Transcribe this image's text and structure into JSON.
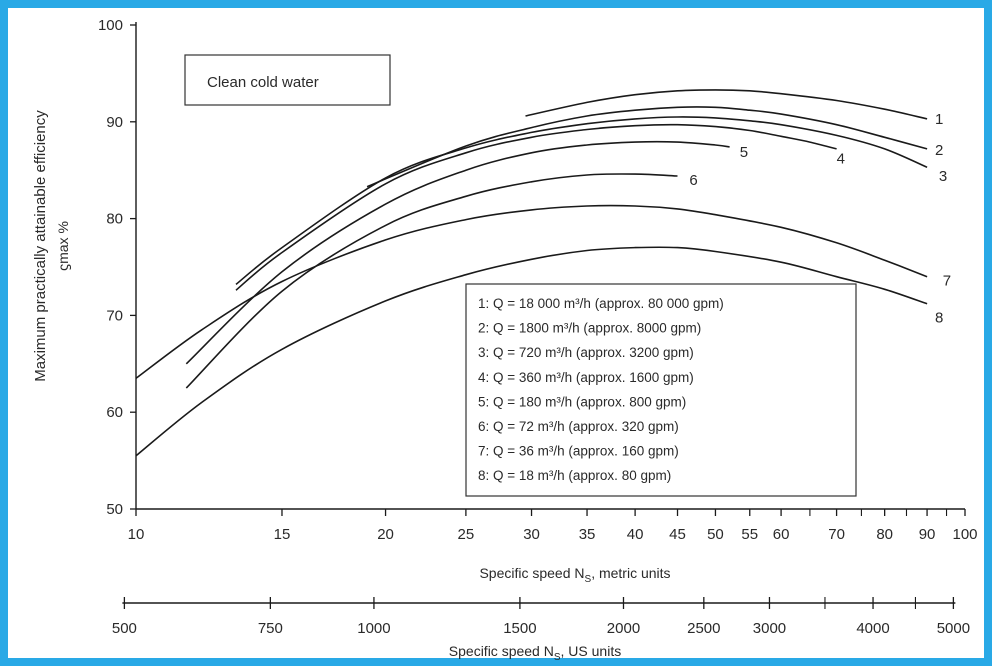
{
  "chart_data": {
    "type": "line",
    "title": "",
    "xlabel": "Specific speed N",
    "xlabel_sub": "S",
    "xlabel_suffix": ", metric units",
    "x2label": "Specific speed N",
    "x2label_sub": "S",
    "x2label_suffix": ", US units",
    "ylabel": "Maximum practically attainable efficiency",
    "ylabel2": "ϛmax %",
    "x_scale": "log",
    "xlim": [
      10,
      100
    ],
    "ylim": [
      50,
      100
    ],
    "x_ticks": [
      10,
      15,
      20,
      25,
      30,
      35,
      40,
      45,
      50,
      55,
      60,
      70,
      80,
      90,
      100
    ],
    "x_minor_ticks": [
      65,
      75,
      85,
      95
    ],
    "y_ticks": [
      50,
      60,
      70,
      80,
      90,
      100
    ],
    "x2_ticks": [
      500,
      750,
      1000,
      1500,
      2000,
      2500,
      3000,
      4000,
      5000
    ],
    "x2_minor_ticks": [
      3500,
      4500
    ],
    "x2_scale_factor": 51.64,
    "annotation": "Clean cold water",
    "series": [
      {
        "name": "1",
        "x": [
          29.5,
          35,
          40,
          45,
          50,
          55,
          60,
          70,
          80,
          90
        ],
        "y": [
          90.6,
          92.0,
          92.8,
          93.2,
          93.3,
          93.2,
          92.9,
          92.2,
          91.3,
          90.3
        ],
        "label_x": 92,
        "label_y": 90.3
      },
      {
        "name": "2",
        "x": [
          19,
          25,
          30,
          35,
          40,
          45,
          50,
          55,
          60,
          70,
          80,
          90
        ],
        "y": [
          83.3,
          87.5,
          89.4,
          90.6,
          91.2,
          91.5,
          91.5,
          91.2,
          90.8,
          89.7,
          88.4,
          87.2
        ],
        "label_x": 92,
        "label_y": 87.1
      },
      {
        "name": "3",
        "x": [
          13.2,
          15,
          20,
          25,
          30,
          35,
          40,
          45,
          50,
          55,
          60,
          70,
          80,
          90
        ],
        "y": [
          73.2,
          77.0,
          84.2,
          87.3,
          88.9,
          89.8,
          90.3,
          90.5,
          90.4,
          90.1,
          89.7,
          88.6,
          87.2,
          85.3
        ],
        "label_x": 93,
        "label_y": 84.4
      },
      {
        "name": "4",
        "x": [
          13.2,
          15,
          20,
          25,
          30,
          35,
          40,
          45,
          50,
          55,
          60,
          65,
          70
        ],
        "y": [
          72.6,
          76.5,
          83.6,
          86.8,
          88.4,
          89.2,
          89.6,
          89.7,
          89.5,
          89.1,
          88.5,
          87.9,
          87.2
        ],
        "label_x": 70,
        "label_y": 86.2
      },
      {
        "name": "5",
        "x": [
          11.5,
          15,
          20,
          25,
          30,
          35,
          40,
          45,
          50,
          52
        ],
        "y": [
          65.0,
          74.5,
          81.5,
          85.0,
          86.8,
          87.6,
          87.9,
          87.9,
          87.6,
          87.4
        ],
        "label_x": 53.5,
        "label_y": 86.9
      },
      {
        "name": "6",
        "x": [
          11.5,
          15,
          20,
          25,
          30,
          35,
          40,
          45
        ],
        "y": [
          62.5,
          72.5,
          79.3,
          82.3,
          83.8,
          84.5,
          84.6,
          84.4
        ],
        "label_x": 46.5,
        "label_y": 84.0
      },
      {
        "name": "7",
        "x": [
          10,
          12,
          15,
          20,
          25,
          30,
          35,
          40,
          45,
          50,
          60,
          70,
          80,
          90
        ],
        "y": [
          63.5,
          68.5,
          73.5,
          77.8,
          79.9,
          80.9,
          81.3,
          81.3,
          81.0,
          80.4,
          79.1,
          77.5,
          75.7,
          74.0
        ],
        "label_x": 94,
        "label_y": 73.6
      },
      {
        "name": "8",
        "x": [
          10,
          12,
          15,
          20,
          25,
          30,
          35,
          40,
          45,
          50,
          60,
          70,
          80,
          90
        ],
        "y": [
          55.5,
          61.0,
          66.5,
          71.5,
          74.2,
          75.8,
          76.7,
          77.0,
          77.0,
          76.6,
          75.5,
          74.0,
          72.7,
          71.2
        ],
        "label_x": 92,
        "label_y": 69.8
      }
    ],
    "legend": {
      "placement": "lower-right",
      "entries": [
        "1: Q = 18 000 m³/h (approx. 80 000 gpm)",
        "2: Q = 1800 m³/h (approx. 8000 gpm)",
        "3: Q = 720 m³/h (approx. 3200 gpm)",
        "4: Q = 360 m³/h (approx. 1600 gpm)",
        "5: Q = 180 m³/h (approx. 800 gpm)",
        "6: Q = 72 m³/h (approx. 320 gpm)",
        "7: Q = 36 m³/h (approx. 160 gpm)",
        "8: Q = 18 m³/h (approx. 80 gpm)"
      ]
    },
    "grid": false,
    "colors": {
      "frame": "#29a9e6",
      "ink": "#1a1a1a"
    }
  }
}
